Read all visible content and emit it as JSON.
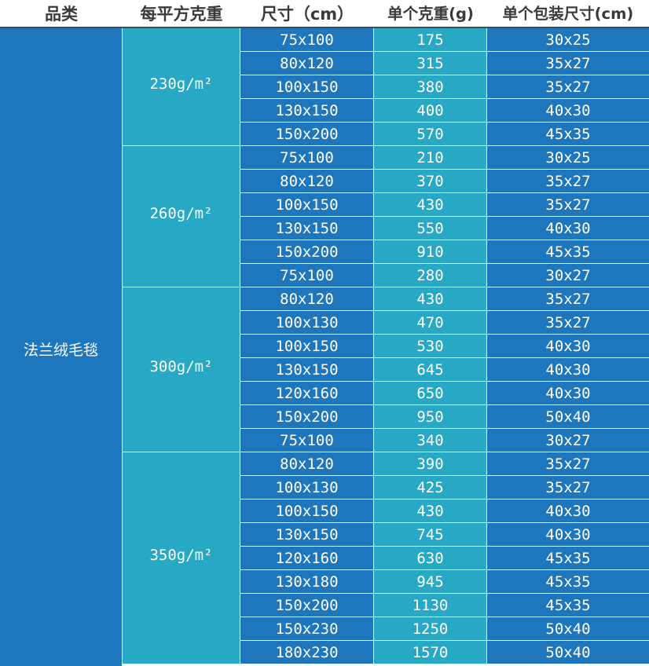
{
  "headers": {
    "category": "品类",
    "gsm": "每平方克重",
    "size": "尺寸（cm）",
    "unit_weight": "单个克重(g)",
    "package_size": "单个包装尺寸(cm)"
  },
  "category": "法兰绒毛毯",
  "groups": [
    {
      "label": "230g/m²",
      "start": 0,
      "span": 5
    },
    {
      "label": "260g/m²",
      "start": 5,
      "span": 6
    },
    {
      "label": "300g/m²",
      "start": 11,
      "span": 7
    },
    {
      "label": "350g/m²",
      "start": 18,
      "span": 9
    }
  ],
  "rows": [
    {
      "size": "75x100",
      "weight": "175",
      "pack": "30x25"
    },
    {
      "size": "80x120",
      "weight": "315",
      "pack": "35x27"
    },
    {
      "size": "100x150",
      "weight": "380",
      "pack": "35x27"
    },
    {
      "size": "130x150",
      "weight": "400",
      "pack": "40x30"
    },
    {
      "size": "150x200",
      "weight": "570",
      "pack": "45x35"
    },
    {
      "size": "75x100",
      "weight": "210",
      "pack": "30x25"
    },
    {
      "size": "80x120",
      "weight": "370",
      "pack": "35x27"
    },
    {
      "size": "100x150",
      "weight": "430",
      "pack": "35x27"
    },
    {
      "size": "130x150",
      "weight": "550",
      "pack": "40x30"
    },
    {
      "size": "150x200",
      "weight": "910",
      "pack": "45x35"
    },
    {
      "size": "75x100",
      "weight": "280",
      "pack": "30x27"
    },
    {
      "size": "80x120",
      "weight": "430",
      "pack": "35x27"
    },
    {
      "size": "100x130",
      "weight": "470",
      "pack": "35x27"
    },
    {
      "size": "100x150",
      "weight": "530",
      "pack": "40x30"
    },
    {
      "size": "130x150",
      "weight": "645",
      "pack": "40x30"
    },
    {
      "size": "120x160",
      "weight": "650",
      "pack": "40x30"
    },
    {
      "size": "150x200",
      "weight": "950",
      "pack": "50x40"
    },
    {
      "size": "75x100",
      "weight": "340",
      "pack": "30x27"
    },
    {
      "size": "80x120",
      "weight": "390",
      "pack": "35x27"
    },
    {
      "size": "100x130",
      "weight": "425",
      "pack": "35x27"
    },
    {
      "size": "100x150",
      "weight": "430",
      "pack": "40x30"
    },
    {
      "size": "130x150",
      "weight": "745",
      "pack": "40x30"
    },
    {
      "size": "120x160",
      "weight": "630",
      "pack": "45x35"
    },
    {
      "size": "130x180",
      "weight": "945",
      "pack": "45x35"
    },
    {
      "size": "150x200",
      "weight": "1130",
      "pack": "45x35"
    },
    {
      "size": "150x230",
      "weight": "1250",
      "pack": "50x40"
    },
    {
      "size": "180x230",
      "weight": "1570",
      "pack": "50x40"
    }
  ],
  "colors": {
    "dark_blue": "#1e76bc",
    "teal": "#27a9c6"
  }
}
